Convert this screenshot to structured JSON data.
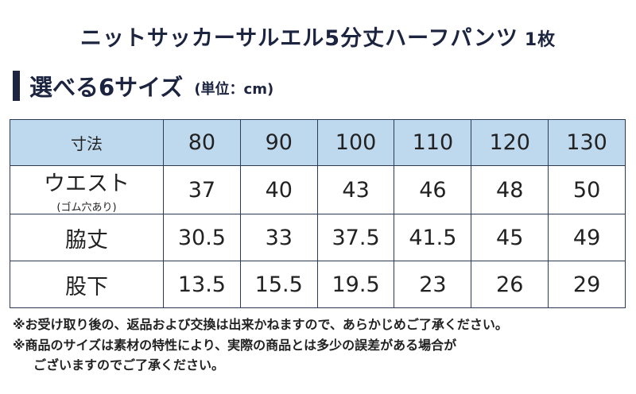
{
  "title": {
    "text": "ニットサッカーサルエル5分丈ハーフパンツ",
    "qty": "1枚"
  },
  "section": {
    "title": "選べる6サイズ",
    "unit": "(単位：cm)"
  },
  "table": {
    "header_label": "寸法",
    "sizes": [
      "80",
      "90",
      "100",
      "110",
      "120",
      "130"
    ],
    "rows": [
      {
        "label": "ウエスト",
        "sublabel": "(ゴム穴あり)",
        "values": [
          "37",
          "40",
          "43",
          "46",
          "48",
          "50"
        ]
      },
      {
        "label": "脇丈",
        "sublabel": "",
        "values": [
          "30.5",
          "33",
          "37.5",
          "41.5",
          "45",
          "49"
        ]
      },
      {
        "label": "股下",
        "sublabel": "",
        "values": [
          "13.5",
          "15.5",
          "19.5",
          "23",
          "26",
          "29"
        ]
      }
    ]
  },
  "notes": {
    "line1": "※お受け取り後の、返品および交換は出来かねますので、あらかじめご了承ください。",
    "line2": "※商品のサイズは素材の特性により、実際の商品とは多少の誤差がある場合が",
    "line3": "ございますのでご了承ください。"
  },
  "colors": {
    "header_bg": "#bed9ee",
    "navy": "#1c2440"
  }
}
